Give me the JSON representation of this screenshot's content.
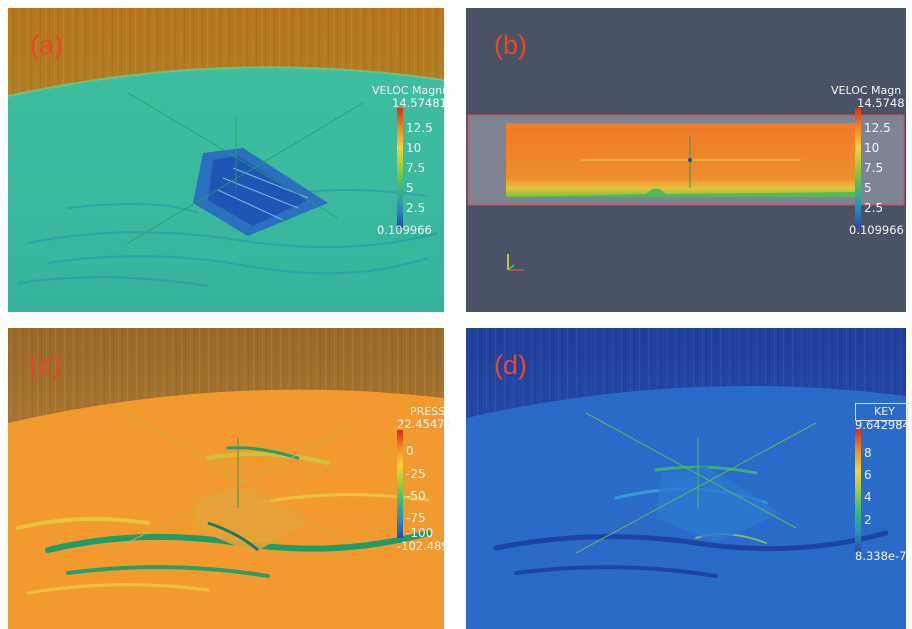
{
  "panels": [
    {
      "label": "(a)",
      "legend": {
        "title": "VELOC Magnit",
        "max": "14.57481",
        "min": "0.109966",
        "ticks": [
          "12.5",
          "10",
          "7.5",
          "5",
          "2.5"
        ]
      }
    },
    {
      "label": "(b)",
      "legend": {
        "title": "VELOC Magn",
        "max": "14.57481",
        "min": "0.109966",
        "ticks": [
          "12.5",
          "10",
          "7.5",
          "5",
          "2.5"
        ]
      }
    },
    {
      "label": "(c)",
      "legend": {
        "title": "PRESS",
        "max": "22.45477",
        "min": "-102.489",
        "ticks": [
          "0",
          "-25",
          "-50",
          "-75",
          "-100"
        ]
      }
    },
    {
      "label": "(d)",
      "legend": {
        "title": "KEY",
        "max": "9.642984",
        "min": "8.338e-7",
        "ticks": [
          "8",
          "6",
          "4",
          "2"
        ]
      }
    }
  ],
  "colormap": "rainbow",
  "label_color": "#e8482a"
}
